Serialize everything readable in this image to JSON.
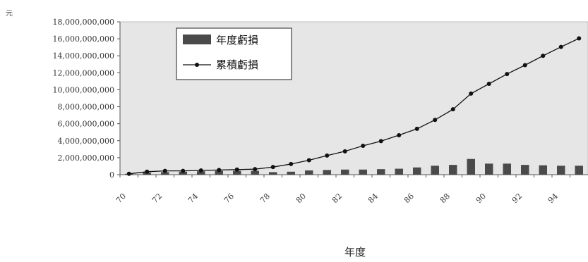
{
  "chart_data": {
    "type": "bar+line",
    "unit_label": "元",
    "xlabel": "年度",
    "x": [
      "70",
      "71",
      "72",
      "73",
      "74",
      "75",
      "76",
      "77",
      "78",
      "79",
      "80",
      "81",
      "82",
      "83",
      "84",
      "85",
      "86",
      "87",
      "88",
      "89",
      "90",
      "91",
      "92",
      "93",
      "94",
      "95"
    ],
    "xtick_labels": [
      "70",
      "72",
      "74",
      "76",
      "78",
      "80",
      "82",
      "84",
      "86",
      "88",
      "90",
      "92",
      "94"
    ],
    "series": [
      {
        "name": "年度虧損",
        "kind": "bar",
        "color": "#4a4a4a",
        "values": [
          100000000,
          250000000,
          300000000,
          350000000,
          400000000,
          450000000,
          450000000,
          450000000,
          300000000,
          350000000,
          500000000,
          550000000,
          600000000,
          600000000,
          650000000,
          700000000,
          850000000,
          1050000000,
          1150000000,
          1850000000,
          1300000000,
          1300000000,
          1150000000,
          1100000000,
          1050000000,
          1050000000
        ]
      },
      {
        "name": "累積虧損",
        "kind": "line",
        "color": "#111111",
        "values": [
          100000000,
          350000000,
          450000000,
          450000000,
          500000000,
          550000000,
          600000000,
          650000000,
          900000000,
          1250000000,
          1700000000,
          2250000000,
          2750000000,
          3400000000,
          3950000000,
          4650000000,
          5400000000,
          6450000000,
          7700000000,
          9550000000,
          10700000000,
          11850000000,
          12900000000,
          14000000000,
          15050000000,
          16050000000
        ]
      }
    ],
    "ylim": [
      0,
      18000000000
    ],
    "yticks": [
      0,
      2000000000,
      4000000000,
      6000000000,
      8000000000,
      10000000000,
      12000000000,
      14000000000,
      16000000000,
      18000000000
    ],
    "ytick_labels": [
      "0",
      "2,000,000,000",
      "4,000,000,000",
      "6,000,000,000",
      "8,000,000,000",
      "10,000,000,000",
      "12,000,000,000",
      "14,000,000,000",
      "16,000,000,000",
      "18,000,000,000"
    ],
    "grid": false,
    "legend": "top-left",
    "colors": {
      "plot_bg": "#e6e6e6",
      "axis": "#555555"
    }
  }
}
